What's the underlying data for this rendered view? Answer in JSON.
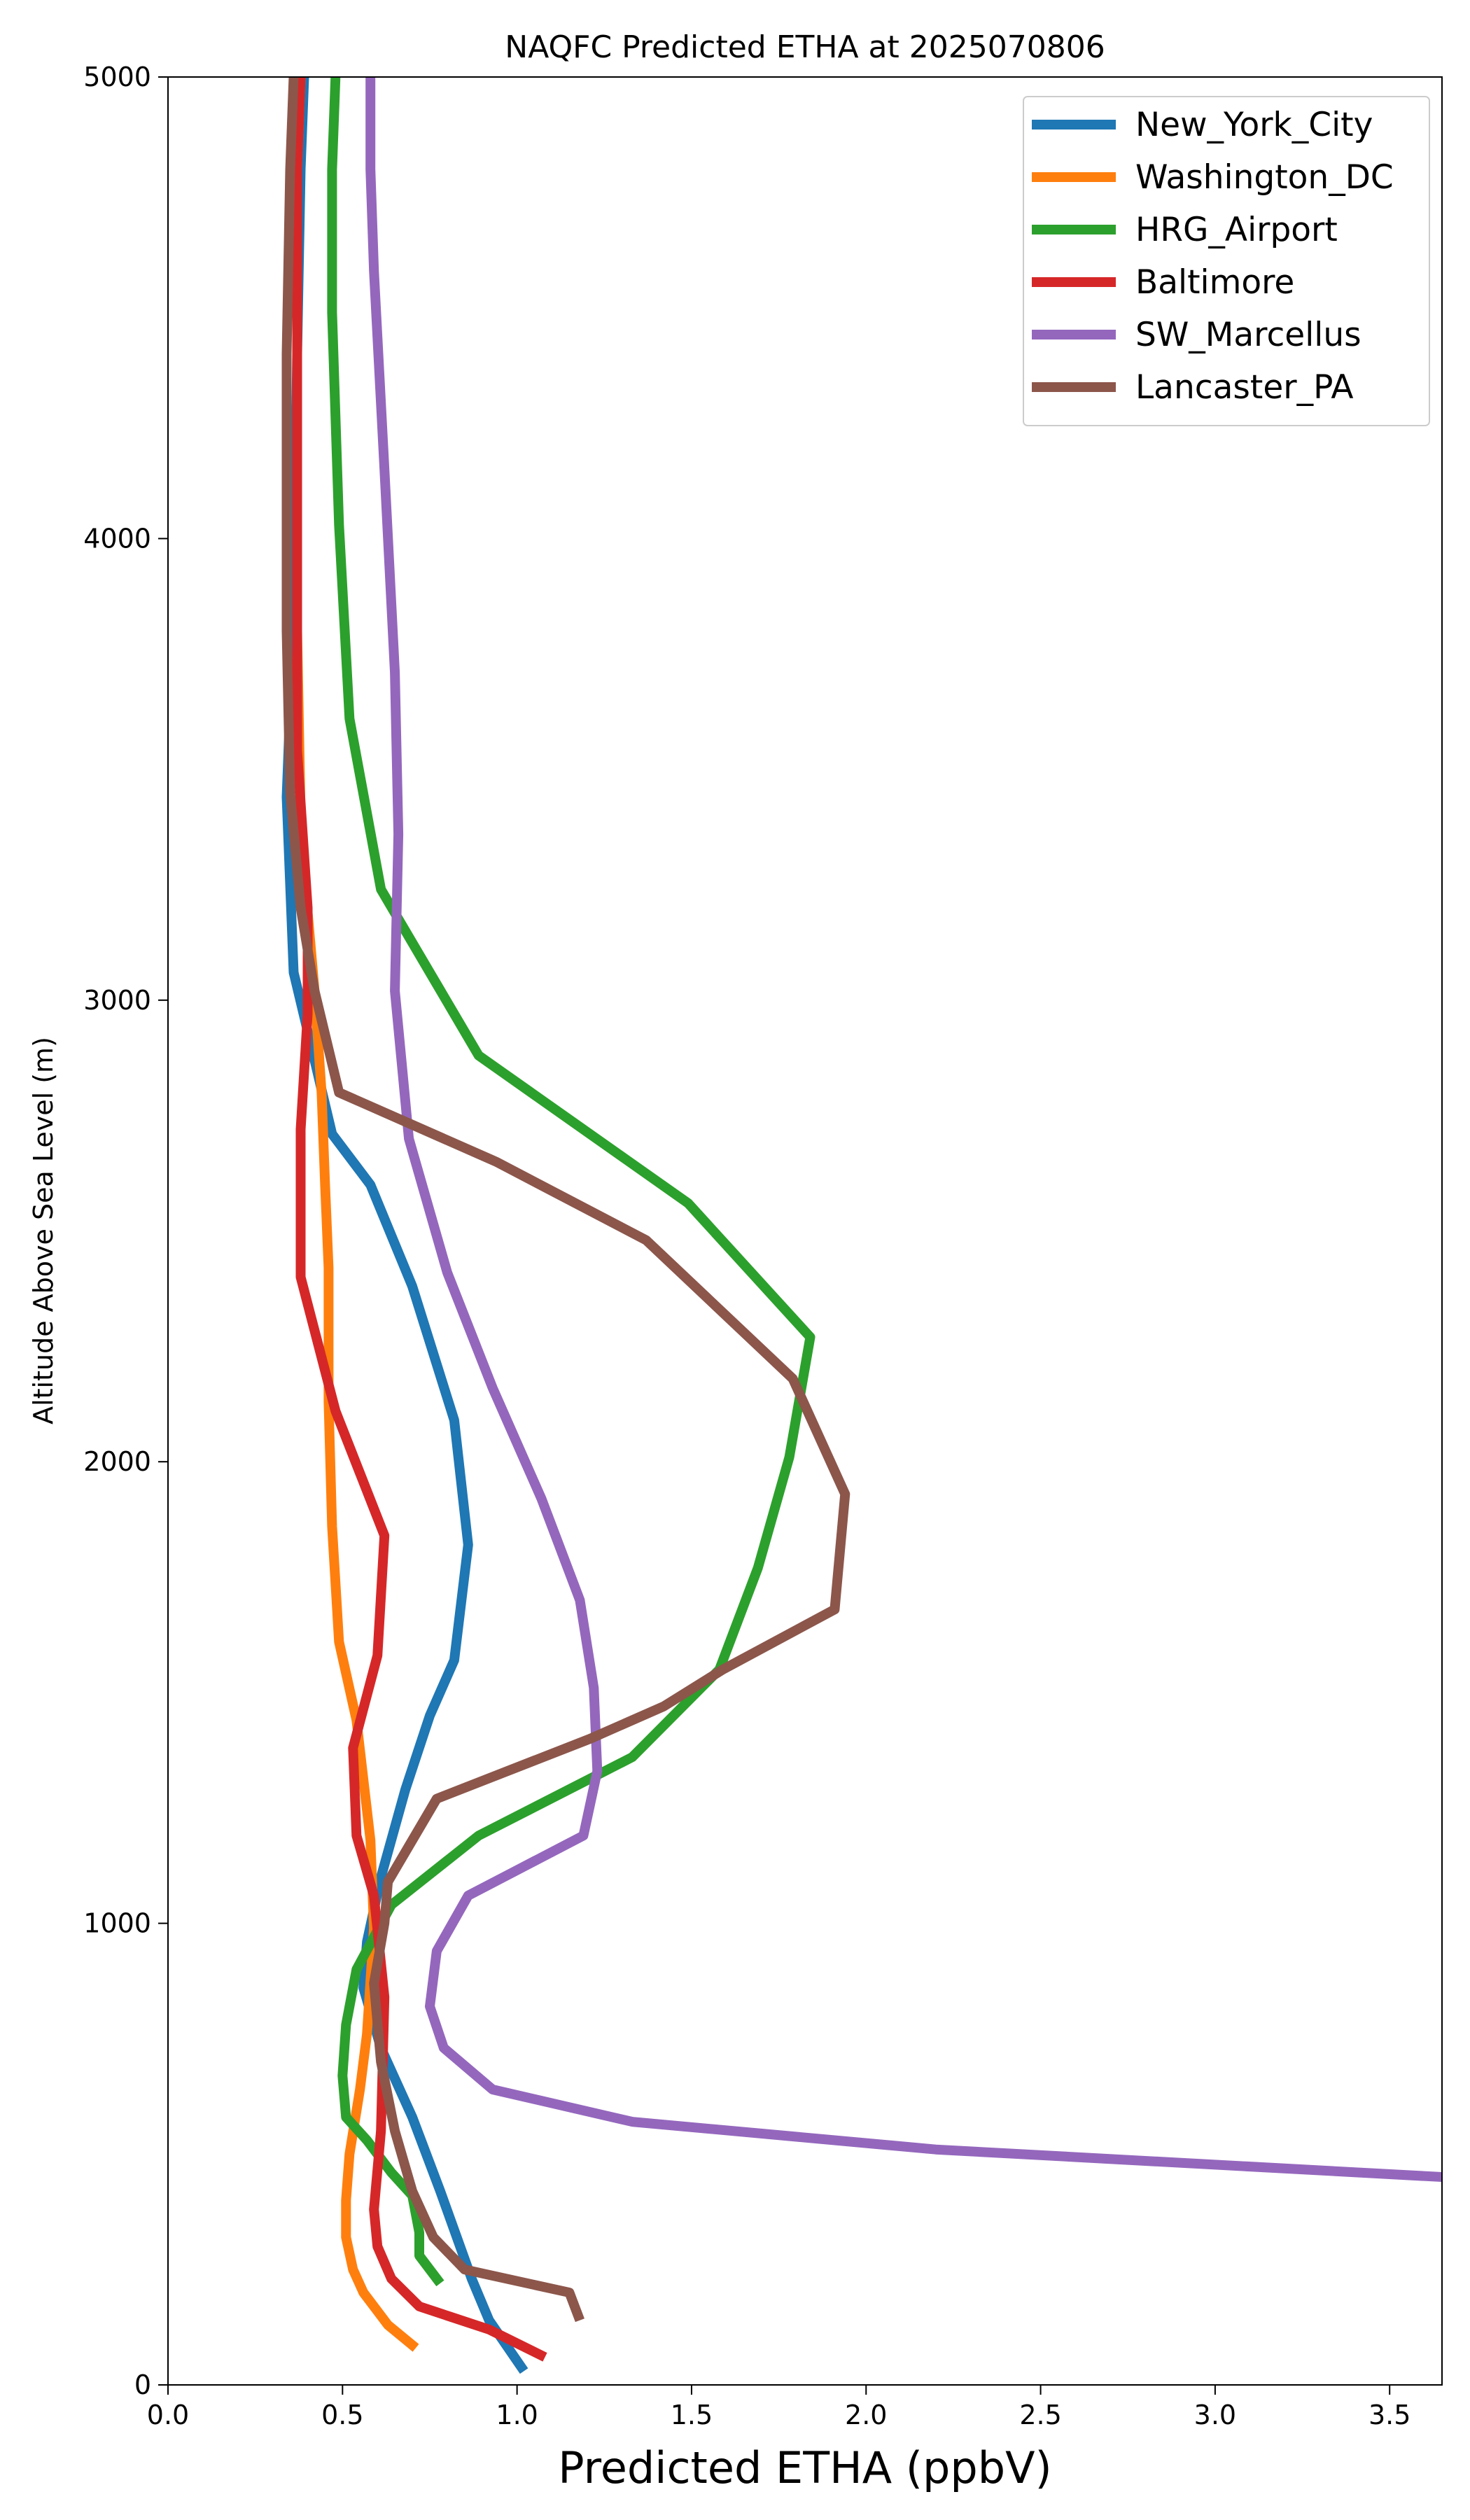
{
  "chart_data": {
    "type": "line",
    "title": "NAQFC Predicted ETHA at 2025070806",
    "xlabel": "Predicted ETHA (ppbV)",
    "ylabel": "Altitude Above Sea Level (m)",
    "xlim": [
      0,
      3.65
    ],
    "ylim": [
      0,
      5000
    ],
    "xticks": [
      "0.0",
      "0.5",
      "1.0",
      "1.5",
      "2.0",
      "2.5",
      "3.0",
      "3.5"
    ],
    "yticks": [
      "0",
      "1000",
      "2000",
      "3000",
      "4000",
      "5000"
    ],
    "legend": "top-right",
    "grid": false,
    "series": [
      {
        "name": "New_York_City",
        "color": "#1f77b4",
        "points": [
          [
            1.02,
            30
          ],
          [
            0.92,
            140
          ],
          [
            0.87,
            230
          ],
          [
            0.78,
            420
          ],
          [
            0.7,
            580
          ],
          [
            0.61,
            730
          ],
          [
            0.56,
            860
          ],
          [
            0.57,
            960
          ],
          [
            0.61,
            1100
          ],
          [
            0.68,
            1290
          ],
          [
            0.75,
            1450
          ],
          [
            0.82,
            1570
          ],
          [
            0.86,
            1820
          ],
          [
            0.82,
            2090
          ],
          [
            0.7,
            2380
          ],
          [
            0.58,
            2600
          ],
          [
            0.47,
            2710
          ],
          [
            0.42,
            2870
          ],
          [
            0.36,
            3060
          ],
          [
            0.34,
            3440
          ],
          [
            0.36,
            3830
          ],
          [
            0.37,
            4400
          ],
          [
            0.38,
            4800
          ],
          [
            0.39,
            5000
          ]
        ]
      },
      {
        "name": "Washington_DC",
        "color": "#ff7f0e",
        "points": [
          [
            0.71,
            80
          ],
          [
            0.63,
            130
          ],
          [
            0.56,
            200
          ],
          [
            0.53,
            250
          ],
          [
            0.51,
            320
          ],
          [
            0.51,
            400
          ],
          [
            0.52,
            500
          ],
          [
            0.55,
            640
          ],
          [
            0.57,
            760
          ],
          [
            0.59,
            990
          ],
          [
            0.58,
            1180
          ],
          [
            0.54,
            1440
          ],
          [
            0.49,
            1610
          ],
          [
            0.47,
            1860
          ],
          [
            0.46,
            2130
          ],
          [
            0.46,
            2420
          ],
          [
            0.45,
            2600
          ],
          [
            0.44,
            2800
          ],
          [
            0.42,
            3020
          ],
          [
            0.4,
            3190
          ],
          [
            0.38,
            3400
          ],
          [
            0.37,
            3800
          ],
          [
            0.37,
            4400
          ],
          [
            0.37,
            4800
          ],
          [
            0.38,
            5000
          ]
        ]
      },
      {
        "name": "HRG_Airport",
        "color": "#2ca02c",
        "points": [
          [
            0.78,
            220
          ],
          [
            0.72,
            280
          ],
          [
            0.72,
            330
          ],
          [
            0.7,
            410
          ],
          [
            0.64,
            460
          ],
          [
            0.57,
            530
          ],
          [
            0.51,
            580
          ],
          [
            0.5,
            670
          ],
          [
            0.51,
            780
          ],
          [
            0.54,
            900
          ],
          [
            0.64,
            1040
          ],
          [
            0.89,
            1190
          ],
          [
            1.33,
            1360
          ],
          [
            1.58,
            1550
          ],
          [
            1.69,
            1770
          ],
          [
            1.78,
            2010
          ],
          [
            1.84,
            2270
          ],
          [
            1.49,
            2560
          ],
          [
            0.89,
            2880
          ],
          [
            0.61,
            3240
          ],
          [
            0.52,
            3610
          ],
          [
            0.49,
            4030
          ],
          [
            0.47,
            4490
          ],
          [
            0.47,
            4800
          ],
          [
            0.48,
            5000
          ]
        ]
      },
      {
        "name": "Baltimore",
        "color": "#d62728",
        "points": [
          [
            1.08,
            60
          ],
          [
            0.92,
            120
          ],
          [
            0.72,
            170
          ],
          [
            0.64,
            230
          ],
          [
            0.6,
            300
          ],
          [
            0.59,
            380
          ],
          [
            0.61,
            550
          ],
          [
            0.62,
            840
          ],
          [
            0.59,
            1060
          ],
          [
            0.54,
            1190
          ],
          [
            0.53,
            1380
          ],
          [
            0.6,
            1580
          ],
          [
            0.62,
            1840
          ],
          [
            0.48,
            2110
          ],
          [
            0.38,
            2400
          ],
          [
            0.38,
            2720
          ],
          [
            0.4,
            2970
          ],
          [
            0.4,
            3200
          ],
          [
            0.37,
            3540
          ],
          [
            0.37,
            3850
          ],
          [
            0.37,
            4400
          ],
          [
            0.37,
            4800
          ],
          [
            0.38,
            5000
          ]
        ]
      },
      {
        "name": "SW_Marcellus",
        "color": "#9467bd",
        "points": [
          [
            3.66,
            450
          ],
          [
            2.2,
            510
          ],
          [
            1.33,
            570
          ],
          [
            0.93,
            640
          ],
          [
            0.79,
            730
          ],
          [
            0.75,
            820
          ],
          [
            0.77,
            940
          ],
          [
            0.86,
            1060
          ],
          [
            1.19,
            1190
          ],
          [
            1.23,
            1330
          ],
          [
            1.22,
            1510
          ],
          [
            1.18,
            1700
          ],
          [
            1.07,
            1920
          ],
          [
            0.93,
            2160
          ],
          [
            0.8,
            2410
          ],
          [
            0.69,
            2700
          ],
          [
            0.65,
            3020
          ],
          [
            0.66,
            3360
          ],
          [
            0.65,
            3710
          ],
          [
            0.62,
            4150
          ],
          [
            0.59,
            4580
          ],
          [
            0.58,
            4800
          ],
          [
            0.58,
            5000
          ]
        ]
      },
      {
        "name": "Lancaster_PA",
        "color": "#8c564b",
        "points": [
          [
            1.18,
            140
          ],
          [
            1.15,
            200
          ],
          [
            0.85,
            250
          ],
          [
            0.76,
            320
          ],
          [
            0.7,
            420
          ],
          [
            0.65,
            550
          ],
          [
            0.61,
            700
          ],
          [
            0.59,
            870
          ],
          [
            0.62,
            1000
          ],
          [
            0.63,
            1090
          ],
          [
            0.77,
            1270
          ],
          [
            1.21,
            1400
          ],
          [
            1.42,
            1470
          ],
          [
            1.59,
            1550
          ],
          [
            1.91,
            1680
          ],
          [
            1.94,
            1930
          ],
          [
            1.79,
            2180
          ],
          [
            1.37,
            2480
          ],
          [
            0.94,
            2650
          ],
          [
            0.49,
            2800
          ],
          [
            0.42,
            3020
          ],
          [
            0.38,
            3200
          ],
          [
            0.35,
            3450
          ],
          [
            0.34,
            3800
          ],
          [
            0.34,
            4400
          ],
          [
            0.35,
            4800
          ],
          [
            0.36,
            5000
          ]
        ]
      }
    ]
  }
}
